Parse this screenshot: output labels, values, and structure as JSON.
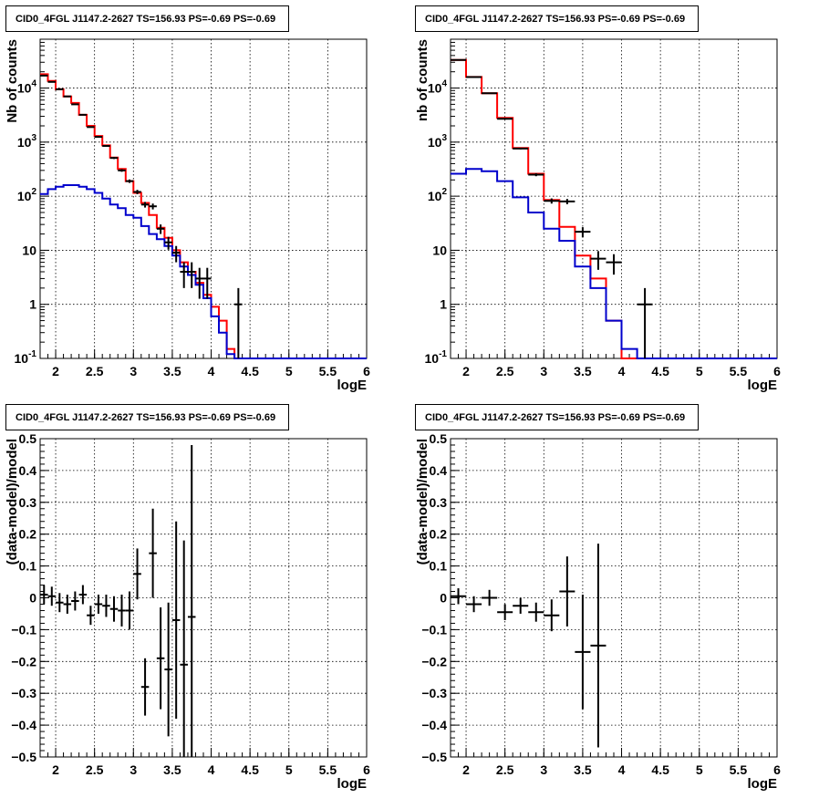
{
  "chart_data": [
    {
      "type": "line",
      "title": "CID0_4FGL J1147.2-2627 TS=156.93 PS=-0.69 PS=-0.69",
      "xlabel": "logE",
      "ylabel": "Nb of counts",
      "xlim": [
        1.8,
        6.0
      ],
      "ylim": [
        0.1,
        80000
      ],
      "yscale": "log",
      "grid": true,
      "xticks": [
        "2",
        "2.5",
        "3",
        "3.5",
        "4",
        "4.5",
        "5",
        "5.5",
        "6"
      ],
      "yticks": [
        "10^-1",
        "1",
        "10",
        "10^2",
        "10^3",
        "10^4"
      ],
      "bin_edges": [
        1.8,
        1.9,
        2.0,
        2.1,
        2.2,
        2.3,
        2.4,
        2.5,
        2.6,
        2.7,
        2.8,
        2.9,
        3.0,
        3.1,
        3.2,
        3.3,
        3.4,
        3.5,
        3.6,
        3.7,
        3.8,
        3.9,
        4.0,
        4.1,
        4.2,
        4.3,
        4.4,
        4.5,
        4.6,
        4.7,
        4.8,
        4.9,
        5.0,
        5.1,
        5.2,
        5.3,
        5.4,
        5.5,
        5.6,
        5.7,
        5.8,
        5.9,
        6.0
      ],
      "series": [
        {
          "color": "#ff0000",
          "values": [
            18000,
            13500,
            9500,
            7000,
            5300,
            3200,
            2000,
            1300,
            870,
            520,
            320,
            190,
            115,
            75,
            45,
            26,
            17,
            10,
            6,
            4,
            2.5,
            1.5,
            0.9,
            0.5,
            0.15,
            0,
            0,
            0,
            0,
            0,
            0,
            0,
            0,
            0,
            0,
            0,
            0,
            0,
            0,
            0,
            0,
            0
          ]
        },
        {
          "color": "#0000cc",
          "values": [
            110,
            135,
            150,
            160,
            160,
            150,
            135,
            115,
            90,
            70,
            60,
            45,
            40,
            28,
            20,
            16,
            12,
            8,
            5,
            3.5,
            2.3,
            1.3,
            0.6,
            0.3,
            0.12,
            0,
            0,
            0,
            0,
            0,
            0,
            0,
            0,
            0,
            0,
            0,
            0,
            0,
            0,
            0,
            0,
            0
          ]
        },
        {
          "color": "#000000",
          "points": [
            {
              "x": 1.85,
              "y": 17000
            },
            {
              "x": 1.95,
              "y": 13000
            },
            {
              "x": 2.05,
              "y": 9500
            },
            {
              "x": 2.15,
              "y": 7000
            },
            {
              "x": 2.25,
              "y": 5000
            },
            {
              "x": 2.35,
              "y": 3200
            },
            {
              "x": 2.45,
              "y": 1900
            },
            {
              "x": 2.55,
              "y": 1250
            },
            {
              "x": 2.65,
              "y": 850
            },
            {
              "x": 2.75,
              "y": 510
            },
            {
              "x": 2.85,
              "y": 300
            },
            {
              "x": 2.95,
              "y": 190
            },
            {
              "x": 3.05,
              "y": 120
            },
            {
              "x": 3.15,
              "y": 70
            },
            {
              "x": 3.25,
              "y": 65
            },
            {
              "x": 3.35,
              "y": 25
            },
            {
              "x": 3.45,
              "y": 14
            },
            {
              "x": 3.55,
              "y": 9
            },
            {
              "x": 3.65,
              "y": 4
            },
            {
              "x": 3.75,
              "y": 4
            },
            {
              "x": 3.85,
              "y": 3
            },
            {
              "x": 3.95,
              "y": 3
            },
            {
              "x": 4.35,
              "y": 1
            }
          ]
        }
      ]
    },
    {
      "type": "line",
      "title": "CID0_4FGL J1147.2-2627 TS=156.93 PS=-0.69 PS=-0.69",
      "xlabel": "logE",
      "ylabel": "nb of counts",
      "xlim": [
        1.8,
        6.0
      ],
      "ylim": [
        0.1,
        80000
      ],
      "yscale": "log",
      "grid": true,
      "xticks": [
        "2",
        "2.5",
        "3",
        "3.5",
        "4",
        "4.5",
        "5",
        "5.5",
        "6"
      ],
      "yticks": [
        "10^-1",
        "1",
        "10",
        "10^2",
        "10^3",
        "10^4"
      ],
      "bin_edges": [
        1.8,
        2.0,
        2.2,
        2.4,
        2.6,
        2.8,
        3.0,
        3.2,
        3.4,
        3.6,
        3.8,
        4.0,
        4.2,
        4.4,
        4.6,
        4.8,
        5.0,
        5.2,
        5.4,
        5.6,
        5.8,
        6.0
      ],
      "series": [
        {
          "color": "#ff0000",
          "values": [
            33000,
            16000,
            8000,
            2800,
            780,
            260,
            85,
            27,
            8,
            3,
            0.5,
            0.08,
            0,
            0,
            0,
            0,
            0,
            0,
            0,
            0,
            0
          ]
        },
        {
          "color": "#0000cc",
          "values": [
            260,
            320,
            290,
            190,
            95,
            50,
            25,
            15,
            5,
            2,
            0.5,
            0.15,
            0,
            0,
            0,
            0,
            0,
            0,
            0,
            0,
            0
          ]
        },
        {
          "color": "#000000",
          "points": [
            {
              "x": 1.9,
              "y": 33000
            },
            {
              "x": 2.1,
              "y": 16000
            },
            {
              "x": 2.3,
              "y": 8000
            },
            {
              "x": 2.5,
              "y": 2700
            },
            {
              "x": 2.7,
              "y": 760
            },
            {
              "x": 2.9,
              "y": 250
            },
            {
              "x": 3.1,
              "y": 82
            },
            {
              "x": 3.3,
              "y": 80
            },
            {
              "x": 3.5,
              "y": 22
            },
            {
              "x": 3.7,
              "y": 7
            },
            {
              "x": 3.9,
              "y": 6
            },
            {
              "x": 4.3,
              "y": 1
            }
          ]
        }
      ]
    },
    {
      "type": "scatter",
      "title": "CID0_4FGL J1147.2-2627 TS=156.93 PS=-0.69 PS=-0.69",
      "xlabel": "logE",
      "ylabel": "(data-model)/model",
      "xlim": [
        1.8,
        6.0
      ],
      "ylim": [
        -0.5,
        0.5
      ],
      "grid": true,
      "xticks": [
        "2",
        "2.5",
        "3",
        "3.5",
        "4",
        "4.5",
        "5",
        "5.5",
        "6"
      ],
      "yticks": [
        "−0.5",
        "−0.4",
        "−0.3",
        "−0.2",
        "−0.1",
        "0",
        "0.1",
        "0.2",
        "0.3",
        "0.4",
        "0.5"
      ],
      "xerr": 0.05,
      "points": [
        {
          "x": 1.85,
          "y": 0.01,
          "err": 0.03
        },
        {
          "x": 1.95,
          "y": 0.005,
          "err": 0.03
        },
        {
          "x": 2.05,
          "y": -0.015,
          "err": 0.03
        },
        {
          "x": 2.15,
          "y": -0.02,
          "err": 0.03
        },
        {
          "x": 2.25,
          "y": -0.01,
          "err": 0.03
        },
        {
          "x": 2.35,
          "y": 0.01,
          "err": 0.03
        },
        {
          "x": 2.45,
          "y": -0.055,
          "err": 0.03
        },
        {
          "x": 2.55,
          "y": -0.02,
          "err": 0.03
        },
        {
          "x": 2.65,
          "y": -0.025,
          "err": 0.035
        },
        {
          "x": 2.75,
          "y": -0.035,
          "err": 0.04
        },
        {
          "x": 2.85,
          "y": -0.04,
          "err": 0.05
        },
        {
          "x": 2.95,
          "y": -0.04,
          "err": 0.06
        },
        {
          "x": 3.05,
          "y": 0.075,
          "err": 0.08
        },
        {
          "x": 3.15,
          "y": -0.28,
          "err": 0.09
        },
        {
          "x": 3.25,
          "y": 0.14,
          "err": 0.14
        },
        {
          "x": 3.35,
          "y": -0.19,
          "err": 0.16
        },
        {
          "x": 3.45,
          "y": -0.225,
          "err": 0.21
        },
        {
          "x": 3.55,
          "y": -0.07,
          "err": 0.31
        },
        {
          "x": 3.65,
          "y": -0.21,
          "err": 0.39
        },
        {
          "x": 3.75,
          "y": -0.06,
          "err": 0.54
        }
      ]
    },
    {
      "type": "scatter",
      "title": "CID0_4FGL J1147.2-2627 TS=156.93 PS=-0.69 PS=-0.69",
      "xlabel": "logE",
      "ylabel": "(data-model)/model",
      "xlim": [
        1.8,
        6.0
      ],
      "ylim": [
        -0.5,
        0.5
      ],
      "grid": true,
      "xticks": [
        "2",
        "2.5",
        "3",
        "3.5",
        "4",
        "4.5",
        "5",
        "5.5",
        "6"
      ],
      "yticks": [
        "−0.5",
        "−0.4",
        "−0.3",
        "−0.2",
        "−0.1",
        "0",
        "0.1",
        "0.2",
        "0.3",
        "0.4",
        "0.5"
      ],
      "xerr": 0.1,
      "points": [
        {
          "x": 1.9,
          "y": 0.005,
          "err": 0.025
        },
        {
          "x": 2.1,
          "y": -0.02,
          "err": 0.025
        },
        {
          "x": 2.3,
          "y": 0.0,
          "err": 0.025
        },
        {
          "x": 2.5,
          "y": -0.045,
          "err": 0.025
        },
        {
          "x": 2.7,
          "y": -0.025,
          "err": 0.025
        },
        {
          "x": 2.9,
          "y": -0.045,
          "err": 0.03
        },
        {
          "x": 3.1,
          "y": -0.055,
          "err": 0.05
        },
        {
          "x": 3.3,
          "y": 0.02,
          "err": 0.11
        },
        {
          "x": 3.5,
          "y": -0.17,
          "err": 0.18
        },
        {
          "x": 3.7,
          "y": -0.15,
          "err": 0.32
        }
      ]
    }
  ]
}
